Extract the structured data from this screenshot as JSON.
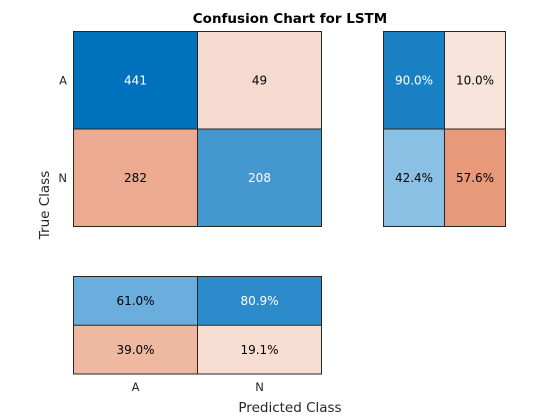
{
  "chart_data": {
    "type": "heatmap",
    "title": "Confusion Chart for LSTM",
    "xlabel": "Predicted Class",
    "ylabel": "True Class",
    "class_labels": [
      "A",
      "N"
    ],
    "matrix": [
      [
        441,
        49
      ],
      [
        282,
        208
      ]
    ],
    "row_summary": [
      [
        "90.0%",
        "10.0%"
      ],
      [
        "42.4%",
        "57.6%"
      ]
    ],
    "column_summary": [
      [
        "61.0%",
        "80.9%"
      ],
      [
        "39.0%",
        "19.1%"
      ]
    ],
    "colors": {
      "main_correct_strong": "#0072bd",
      "main_correct_light": "#80b8e0",
      "main_incorrect_strong": "#e68b66",
      "main_incorrect_light": "#f8e4dc",
      "row_summary": [
        [
          "#1a80c4",
          "#f7e3da"
        ],
        [
          "#8ac0e3",
          "#e8997a"
        ]
      ],
      "column_summary": [
        [
          "#6aaede",
          "#2c8ccb"
        ],
        [
          "#efb8a0",
          "#f8ddd3"
        ]
      ],
      "text_dark": "#000000",
      "text_light": "#ffffff",
      "border": "#262626"
    }
  }
}
